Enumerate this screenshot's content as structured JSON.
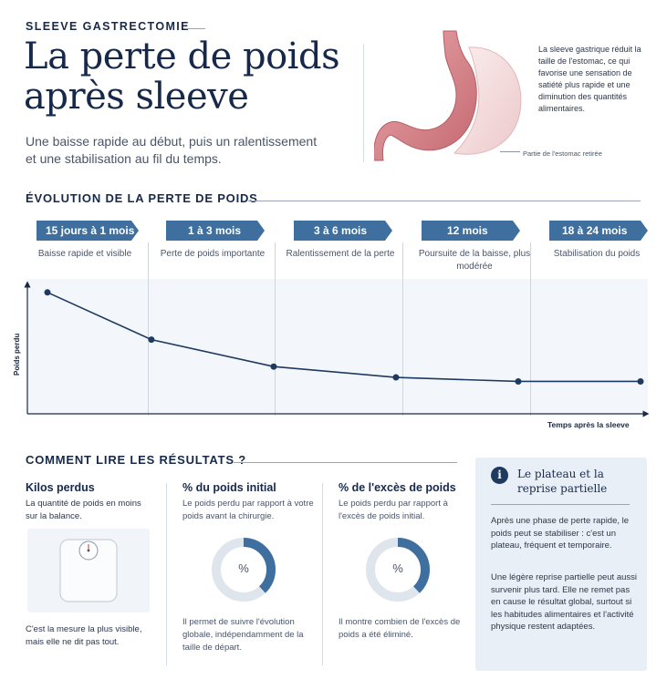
{
  "header": {
    "kicker": "SLEEVE GASTRECTOMIE",
    "title": "La perte de poids après sleeve",
    "subtitle": "Une baisse rapide au début, puis un ralentissement et une stabilisation au fil du temps."
  },
  "illustration": {
    "description": "La sleeve gastrique réduit la taille de l'estomac, ce qui favorise une sensation de satiété plus rapide et une diminution des quantités alimentaires.",
    "removed_part_label": "Partie de l'estomac retirée"
  },
  "evolution": {
    "section_title": "ÉVOLUTION DE LA PERTE DE POIDS",
    "phases": [
      {
        "label": "15 jours à 1 mois",
        "description": "Baisse rapide et visible"
      },
      {
        "label": "1 à 3 mois",
        "description": "Perte de poids importante"
      },
      {
        "label": "3 à 6 mois",
        "description": "Ralentissement de la perte"
      },
      {
        "label": "12 mois",
        "description": "Poursuite de la baisse, plus modérée"
      },
      {
        "label": "18 à 24 mois",
        "description": "Stabilisation du poids"
      }
    ],
    "chart_data": {
      "type": "line",
      "title": "",
      "xlabel": "Temps après la sleeve",
      "ylabel": "Poids perdu",
      "categories": [
        "15 jours à 1 mois",
        "1 à 3 mois",
        "3 à 6 mois",
        "12 mois",
        "18 à 24 mois"
      ],
      "x": [
        0.15,
        1,
        2,
        3,
        4,
        5
      ],
      "series": [
        {
          "values": [
            0.9,
            0.55,
            0.35,
            0.27,
            0.24,
            0.24
          ]
        }
      ],
      "ylim": [
        0,
        1
      ],
      "grid": false,
      "color": "#1f3a5f",
      "value_scale": "relative, no numeric ticks shown"
    }
  },
  "reading": {
    "section_title": "COMMENT LIRE LES RÉSULTATS ?",
    "kilos": {
      "title": "Kilos perdus",
      "description": "La quantité de poids en moins sur la balance.",
      "icon": "bathroom-scale-icon",
      "note": "C'est la mesure la plus visible, mais elle ne dit pas tout."
    },
    "initial": {
      "title": "% du poids initial",
      "description": "Le poids perdu par rapport à votre poids avant la chirurgie.",
      "donut_symbol": "%",
      "donut_fraction": 0.38,
      "note": "Il permet de suivre l'évolution globale, indépendamment de la taille de départ."
    },
    "excess": {
      "title": "% de l'excès de poids",
      "description": "Le poids perdu par rapport à l'excès de poids initial.",
      "donut_symbol": "%",
      "donut_fraction": 0.38,
      "note": "Il montre combien de l'excès de poids a été éliminé."
    }
  },
  "plateau": {
    "icon": "info-icon",
    "icon_glyph": "i",
    "title": "Le plateau et la reprise partielle",
    "paragraph1": "Après une phase de perte rapide, le poids peut se stabiliser : c'est un plateau, fréquent et temporaire.",
    "paragraph2": "Une légère reprise partielle peut aussi survenir plus tard. Elle ne remet pas en cause le résultat global, surtout si les habitudes alimentaires et l'activité physique restent adaptées."
  },
  "colors": {
    "navy": "#17294a",
    "accent": "#3f6f9e",
    "line": "#1f3a5f",
    "panel": "#e9eff6",
    "stomach_pink": "#d9878d"
  }
}
